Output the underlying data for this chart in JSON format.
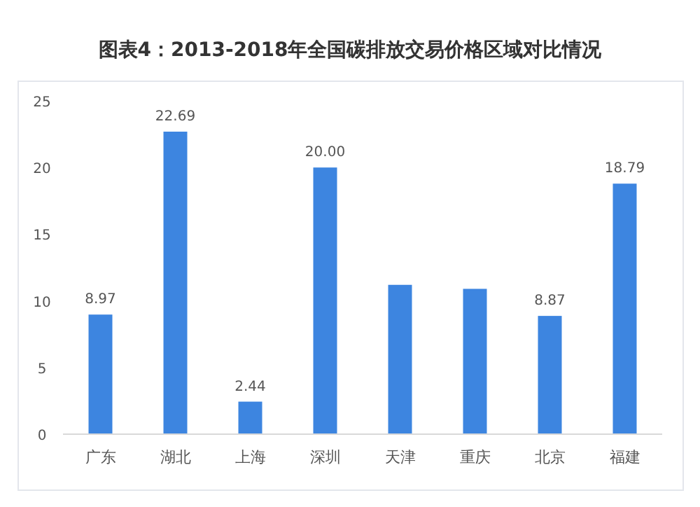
{
  "chart_data": {
    "type": "bar",
    "title": "图表4：2013-2018年全国碳排放交易价格区域对比情况",
    "categories": [
      "广东",
      "湖北",
      "上海",
      "深圳",
      "天津",
      "重庆",
      "北京",
      "福建"
    ],
    "values": [
      8.97,
      22.69,
      2.44,
      20.0,
      11.2,
      10.9,
      8.87,
      18.79
    ],
    "value_labels": [
      "8.97",
      "22.69",
      "2.44",
      "20.00",
      null,
      null,
      "8.87",
      "18.79"
    ],
    "color": "#3d85e0",
    "ylim": [
      0,
      25
    ],
    "yticks": [
      0,
      5,
      10,
      15,
      20,
      25
    ],
    "grid": false
  }
}
